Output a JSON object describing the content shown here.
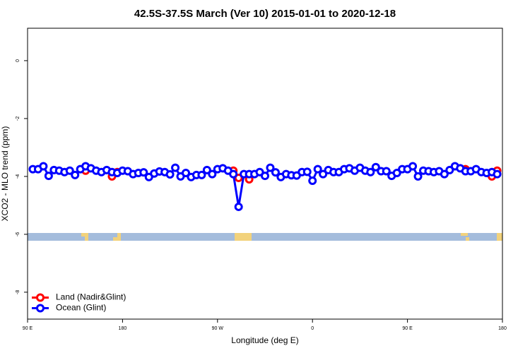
{
  "chart_data": {
    "type": "line",
    "title": "42.5S-37.5S March (Ver 10)   2015-01-01 to 2020-12-18",
    "x_label": "Longitude (deg E)",
    "y_label": "XCO2 - MLO trend (ppm)",
    "xlim": [
      90,
      540
    ],
    "xticks": [
      {
        "value": 90,
        "label": "90 E"
      },
      180,
      {
        "value": 270,
        "label": "90 W"
      },
      {
        "value": 360,
        "label": "0"
      },
      {
        "value": 450,
        "label": "90 E"
      },
      {
        "value": 540,
        "label": "180"
      }
    ],
    "ylim": [
      -8.93,
      1.12
    ],
    "yticks": [
      0,
      -2,
      -4,
      -6,
      -8
    ],
    "legend": "bottom-left",
    "series": [
      {
        "name": "Land (Nadir&Glint)",
        "color": "#ff0000",
        "x": [
          145,
          170,
          175,
          285,
          290,
          300,
          505,
          530,
          535
        ],
        "values": [
          -3.8,
          -4.0,
          -3.85,
          -3.8,
          -4.05,
          -4.1,
          -3.75,
          -4.0,
          -3.8
        ]
      },
      {
        "name": "Ocean (Glint)",
        "color": "#0000ff",
        "x": [
          95,
          100,
          105,
          110,
          115,
          120,
          125,
          130,
          135,
          140,
          145,
          150,
          155,
          160,
          165,
          170,
          175,
          180,
          185,
          190,
          195,
          200,
          205,
          210,
          215,
          220,
          225,
          230,
          235,
          240,
          245,
          250,
          255,
          260,
          265,
          270,
          275,
          280,
          285,
          290,
          295,
          300,
          305,
          310,
          315,
          320,
          325,
          330,
          335,
          340,
          345,
          350,
          355,
          360,
          365,
          370,
          375,
          380,
          385,
          390,
          395,
          400,
          405,
          410,
          415,
          420,
          425,
          430,
          435,
          440,
          445,
          450,
          455,
          460,
          465,
          470,
          475,
          480,
          485,
          490,
          495,
          500,
          505,
          510,
          515,
          520,
          525,
          530,
          535
        ],
        "values": [
          -3.75,
          -3.75,
          -3.65,
          -3.98,
          -3.78,
          -3.8,
          -3.85,
          -3.8,
          -3.95,
          -3.75,
          -3.65,
          -3.72,
          -3.8,
          -3.85,
          -3.78,
          -3.85,
          -3.88,
          -3.8,
          -3.82,
          -3.92,
          -3.88,
          -3.86,
          -4.02,
          -3.9,
          -3.83,
          -3.85,
          -3.93,
          -3.7,
          -4.0,
          -3.88,
          -4.02,
          -3.95,
          -3.95,
          -3.78,
          -3.92,
          -3.75,
          -3.72,
          -3.8,
          -3.92,
          -5.05,
          -3.92,
          -3.92,
          -3.92,
          -3.85,
          -3.98,
          -3.7,
          -3.86,
          -4.02,
          -3.92,
          -3.96,
          -3.97,
          -3.85,
          -3.84,
          -4.15,
          -3.75,
          -3.92,
          -3.78,
          -3.85,
          -3.85,
          -3.75,
          -3.72,
          -3.8,
          -3.7,
          -3.8,
          -3.85,
          -3.68,
          -3.82,
          -3.82,
          -3.98,
          -3.88,
          -3.75,
          -3.75,
          -3.65,
          -4.0,
          -3.8,
          -3.82,
          -3.85,
          -3.82,
          -3.92,
          -3.78,
          -3.65,
          -3.72,
          -3.82,
          -3.82,
          -3.75,
          -3.85,
          -3.88,
          -3.85,
          -3.92
        ]
      }
    ]
  }
}
